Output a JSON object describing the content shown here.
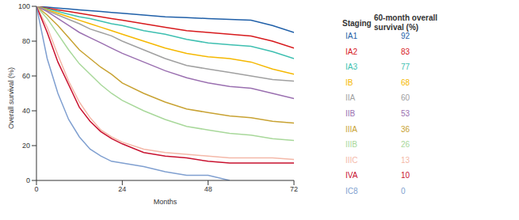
{
  "chart_data": {
    "type": "line",
    "x_label": "Months",
    "y_label": "Overall survival (%)",
    "legend_title": "Staging",
    "legend_value_title": "60-month overall survival (%)",
    "x": [
      0,
      3,
      6,
      9,
      12,
      15,
      18,
      21,
      24,
      30,
      36,
      42,
      48,
      54,
      60,
      66,
      72
    ],
    "xlim": [
      0,
      72
    ],
    "xticks": [
      0,
      24,
      48,
      72
    ],
    "ylim": [
      0,
      100
    ],
    "yticks": [
      0,
      20,
      40,
      60,
      80,
      100
    ],
    "grid": false,
    "series": [
      {
        "name": "IA1",
        "color": "#1f5fa8",
        "survival_60_month": 92,
        "values": [
          100,
          99.5,
          99,
          98.5,
          98,
          97.5,
          97,
          96.5,
          96,
          95,
          94,
          93.5,
          93,
          92.5,
          92,
          89,
          85
        ]
      },
      {
        "name": "IA2",
        "color": "#d7191c",
        "survival_60_month": 83,
        "values": [
          100,
          99,
          98,
          97,
          96,
          95,
          94,
          93,
          92,
          90,
          88,
          86,
          85,
          84,
          83,
          80,
          76
        ]
      },
      {
        "name": "IA3",
        "color": "#3dbfb0",
        "survival_60_month": 77,
        "values": [
          100,
          98.5,
          97,
          95.5,
          94,
          93,
          91.5,
          90,
          89,
          86,
          84,
          81,
          79,
          78,
          77,
          74,
          70
        ]
      },
      {
        "name": "IB",
        "color": "#f5b800",
        "survival_60_month": 68,
        "values": [
          100,
          98,
          96,
          94,
          92,
          90,
          88,
          86,
          84,
          80,
          76,
          73,
          71,
          70,
          68,
          64,
          61
        ]
      },
      {
        "name": "IIA",
        "color": "#a0a0a0",
        "survival_60_month": 60,
        "values": [
          100,
          97.5,
          95,
          92.5,
          90,
          87,
          85,
          83,
          80,
          75,
          70,
          66,
          64,
          62,
          60,
          58,
          57
        ]
      },
      {
        "name": "IIB",
        "color": "#9a6fb0",
        "survival_60_month": 53,
        "values": [
          100,
          97,
          93,
          89,
          85,
          82,
          79,
          76,
          73,
          68,
          63,
          59,
          56,
          54,
          53,
          50,
          47
        ]
      },
      {
        "name": "IIIA",
        "color": "#c8a232",
        "survival_60_month": 36,
        "values": [
          100,
          95,
          89,
          82,
          75,
          70,
          65,
          61,
          56,
          50,
          45,
          41,
          39,
          37,
          36,
          34,
          33
        ]
      },
      {
        "name": "IIIB",
        "color": "#a8d89a",
        "survival_60_month": 26,
        "values": [
          100,
          93,
          84,
          75,
          67,
          61,
          55,
          50,
          46,
          40,
          35,
          31,
          29,
          27,
          26,
          24,
          23
        ]
      },
      {
        "name": "IIIC",
        "color": "#f4b8a8",
        "survival_60_month": 13,
        "values": [
          100,
          88,
          72,
          57,
          45,
          36,
          29,
          25,
          22,
          18,
          16,
          15,
          14,
          13,
          13,
          13,
          12
        ]
      },
      {
        "name": "IVA",
        "color": "#c8102e",
        "survival_60_month": 10,
        "values": [
          100,
          85,
          68,
          55,
          42,
          34,
          28,
          24,
          21,
          16,
          14,
          13,
          11,
          10,
          10,
          10,
          10
        ]
      },
      {
        "name": "IC8",
        "color": "#7f9fd0",
        "survival_60_month": 0,
        "values": [
          100,
          70,
          50,
          35,
          25,
          18,
          14,
          11,
          10,
          8,
          5,
          3,
          3,
          0,
          null,
          null,
          null
        ]
      }
    ]
  }
}
